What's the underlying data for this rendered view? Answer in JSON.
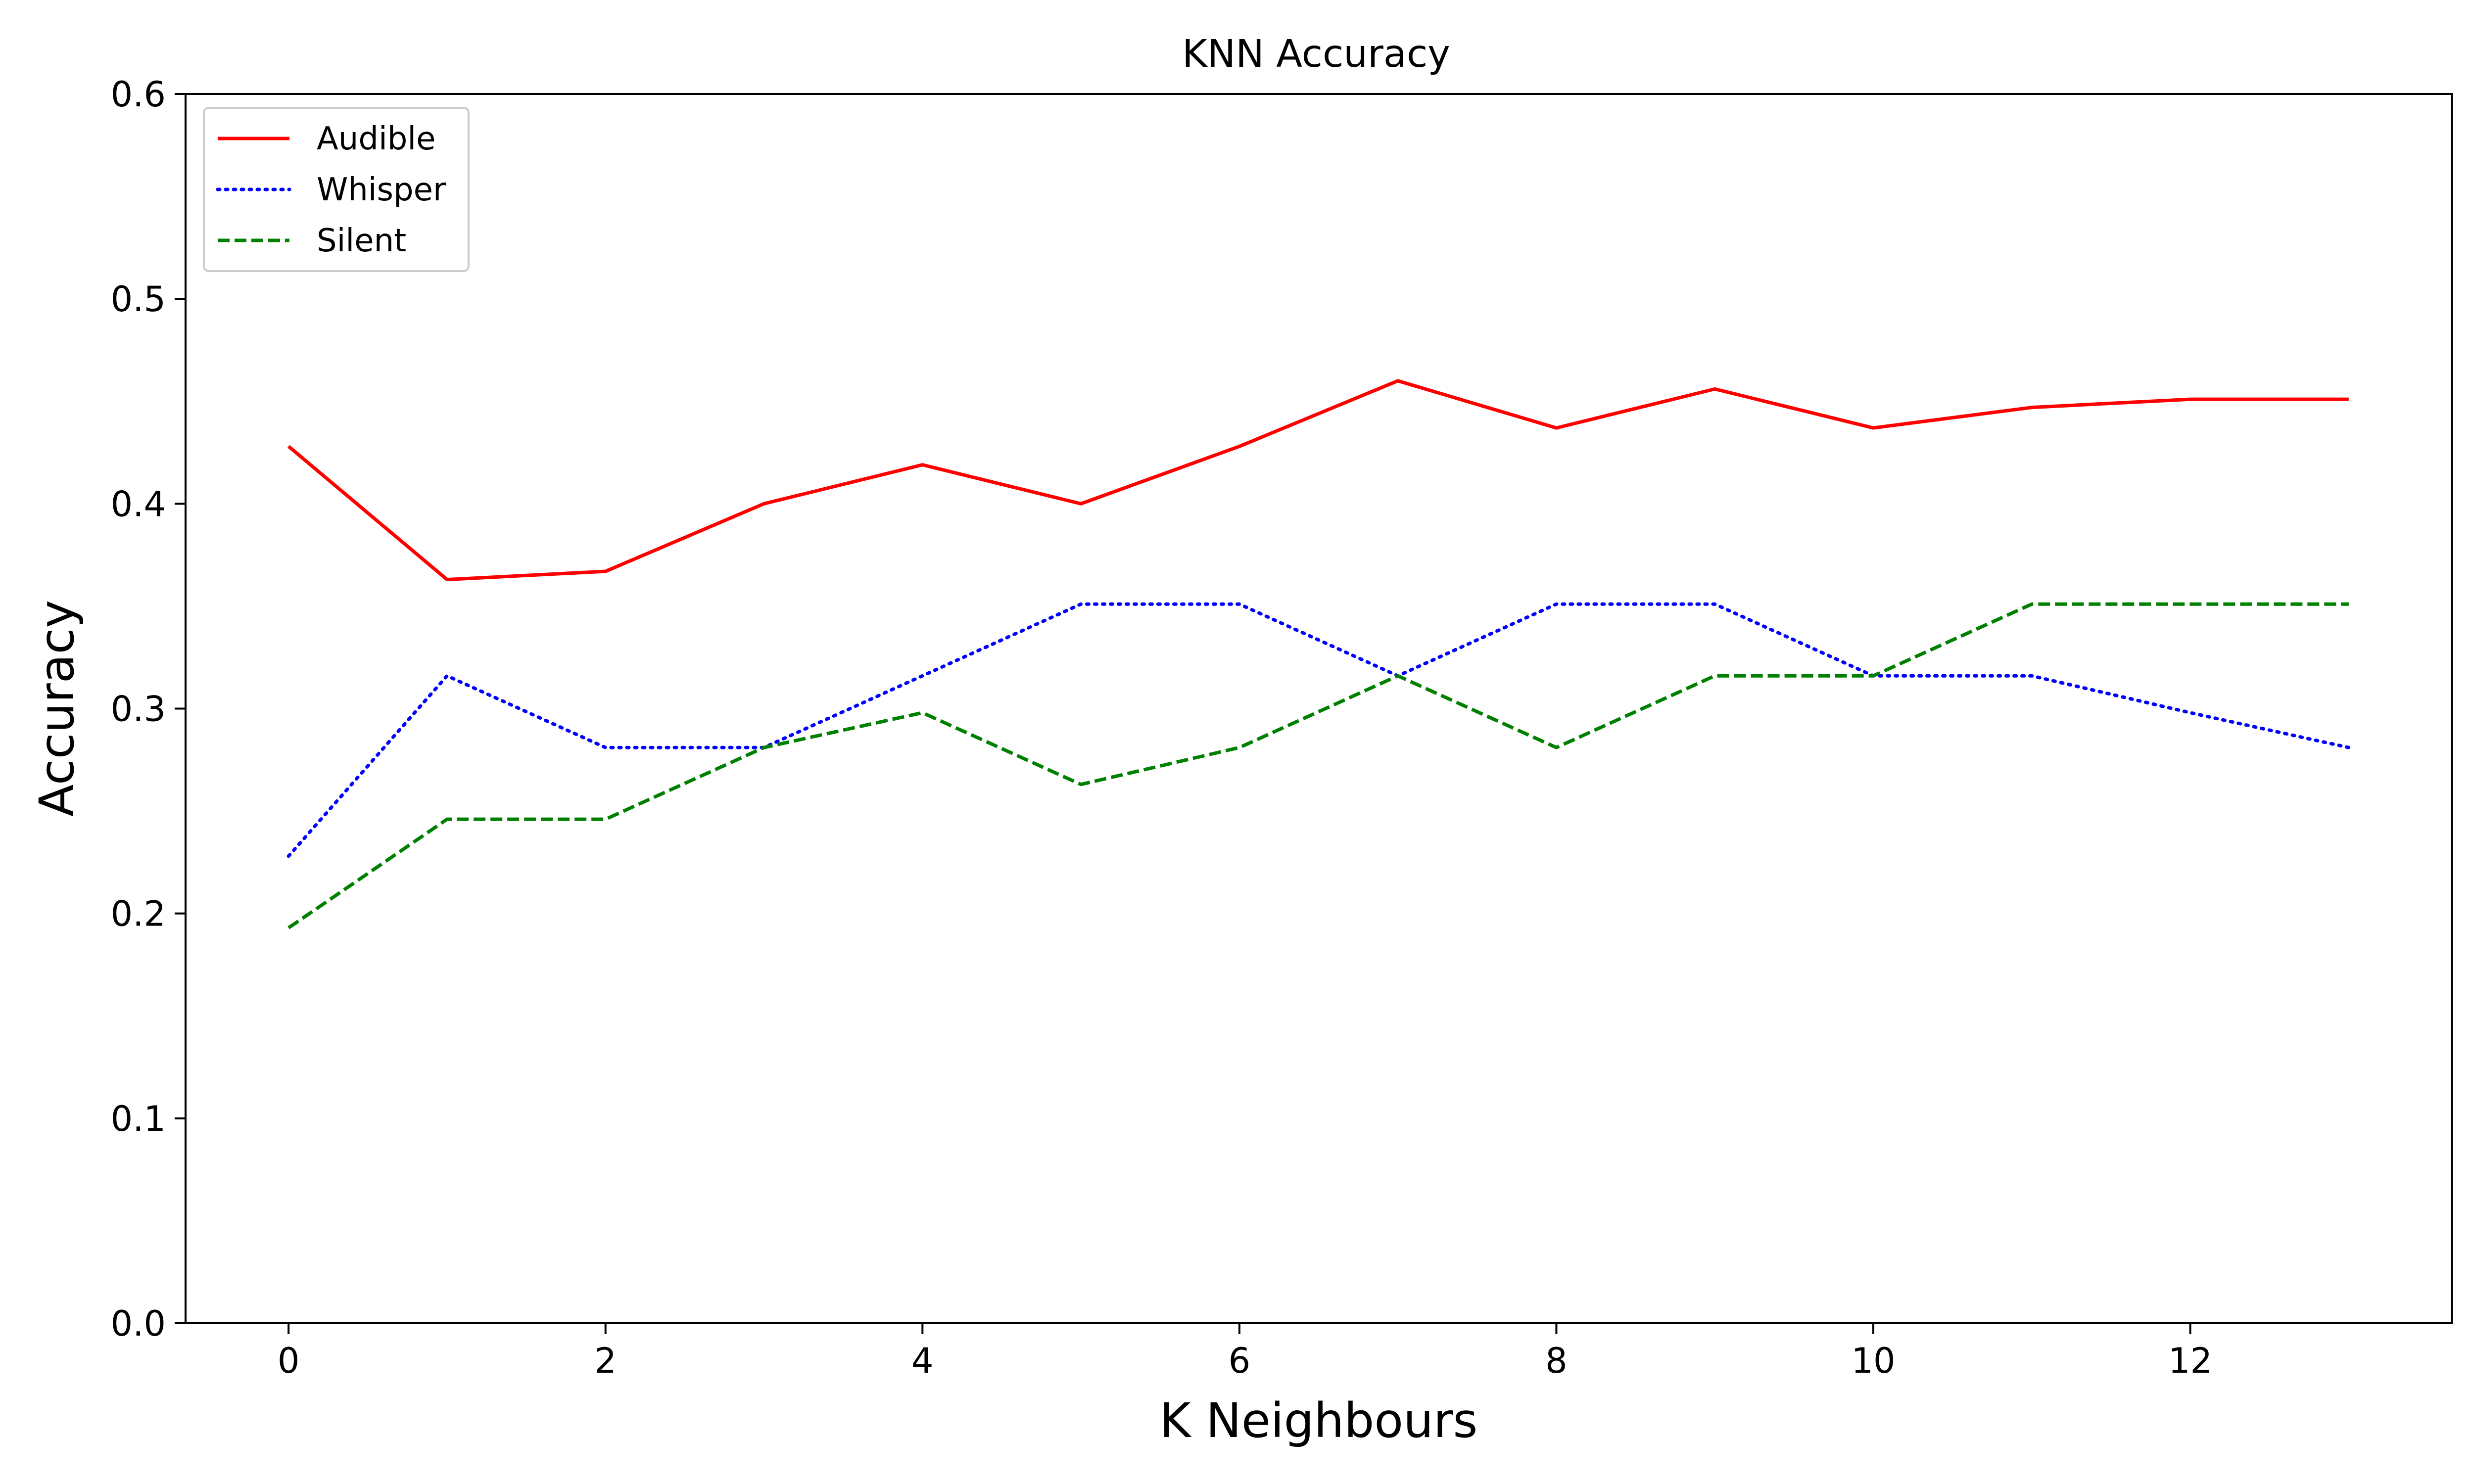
{
  "chart_data": {
    "type": "line",
    "title": "KNN Accuracy",
    "xlabel": "K Neighbours",
    "ylabel": "Accuracy",
    "xlim": [
      -0.65,
      13.65
    ],
    "ylim": [
      0.0,
      0.6
    ],
    "xticks": [
      0,
      2,
      4,
      6,
      8,
      10,
      12
    ],
    "yticks": [
      0.0,
      0.1,
      0.2,
      0.3,
      0.4,
      0.5,
      0.6
    ],
    "x": [
      0,
      1,
      2,
      3,
      4,
      5,
      6,
      7,
      8,
      9,
      10,
      11,
      12,
      13
    ],
    "grid": false,
    "legend_position": "upper-left",
    "series": [
      {
        "name": "Audible",
        "color": "#ff0000",
        "style": "solid",
        "values": [
          0.428,
          0.363,
          0.367,
          0.4,
          0.419,
          0.4,
          0.428,
          0.46,
          0.437,
          0.456,
          0.437,
          0.447,
          0.451,
          0.451
        ]
      },
      {
        "name": "Whisper",
        "color": "#0000ff",
        "style": "dotted",
        "values": [
          0.228,
          0.316,
          0.281,
          0.281,
          0.316,
          0.351,
          0.351,
          0.316,
          0.351,
          0.351,
          0.316,
          0.316,
          0.298,
          0.281
        ]
      },
      {
        "name": "Silent",
        "color": "#008000",
        "style": "dashed",
        "values": [
          0.193,
          0.246,
          0.246,
          0.281,
          0.298,
          0.263,
          0.281,
          0.316,
          0.281,
          0.316,
          0.316,
          0.351,
          0.351,
          0.351
        ]
      }
    ]
  }
}
